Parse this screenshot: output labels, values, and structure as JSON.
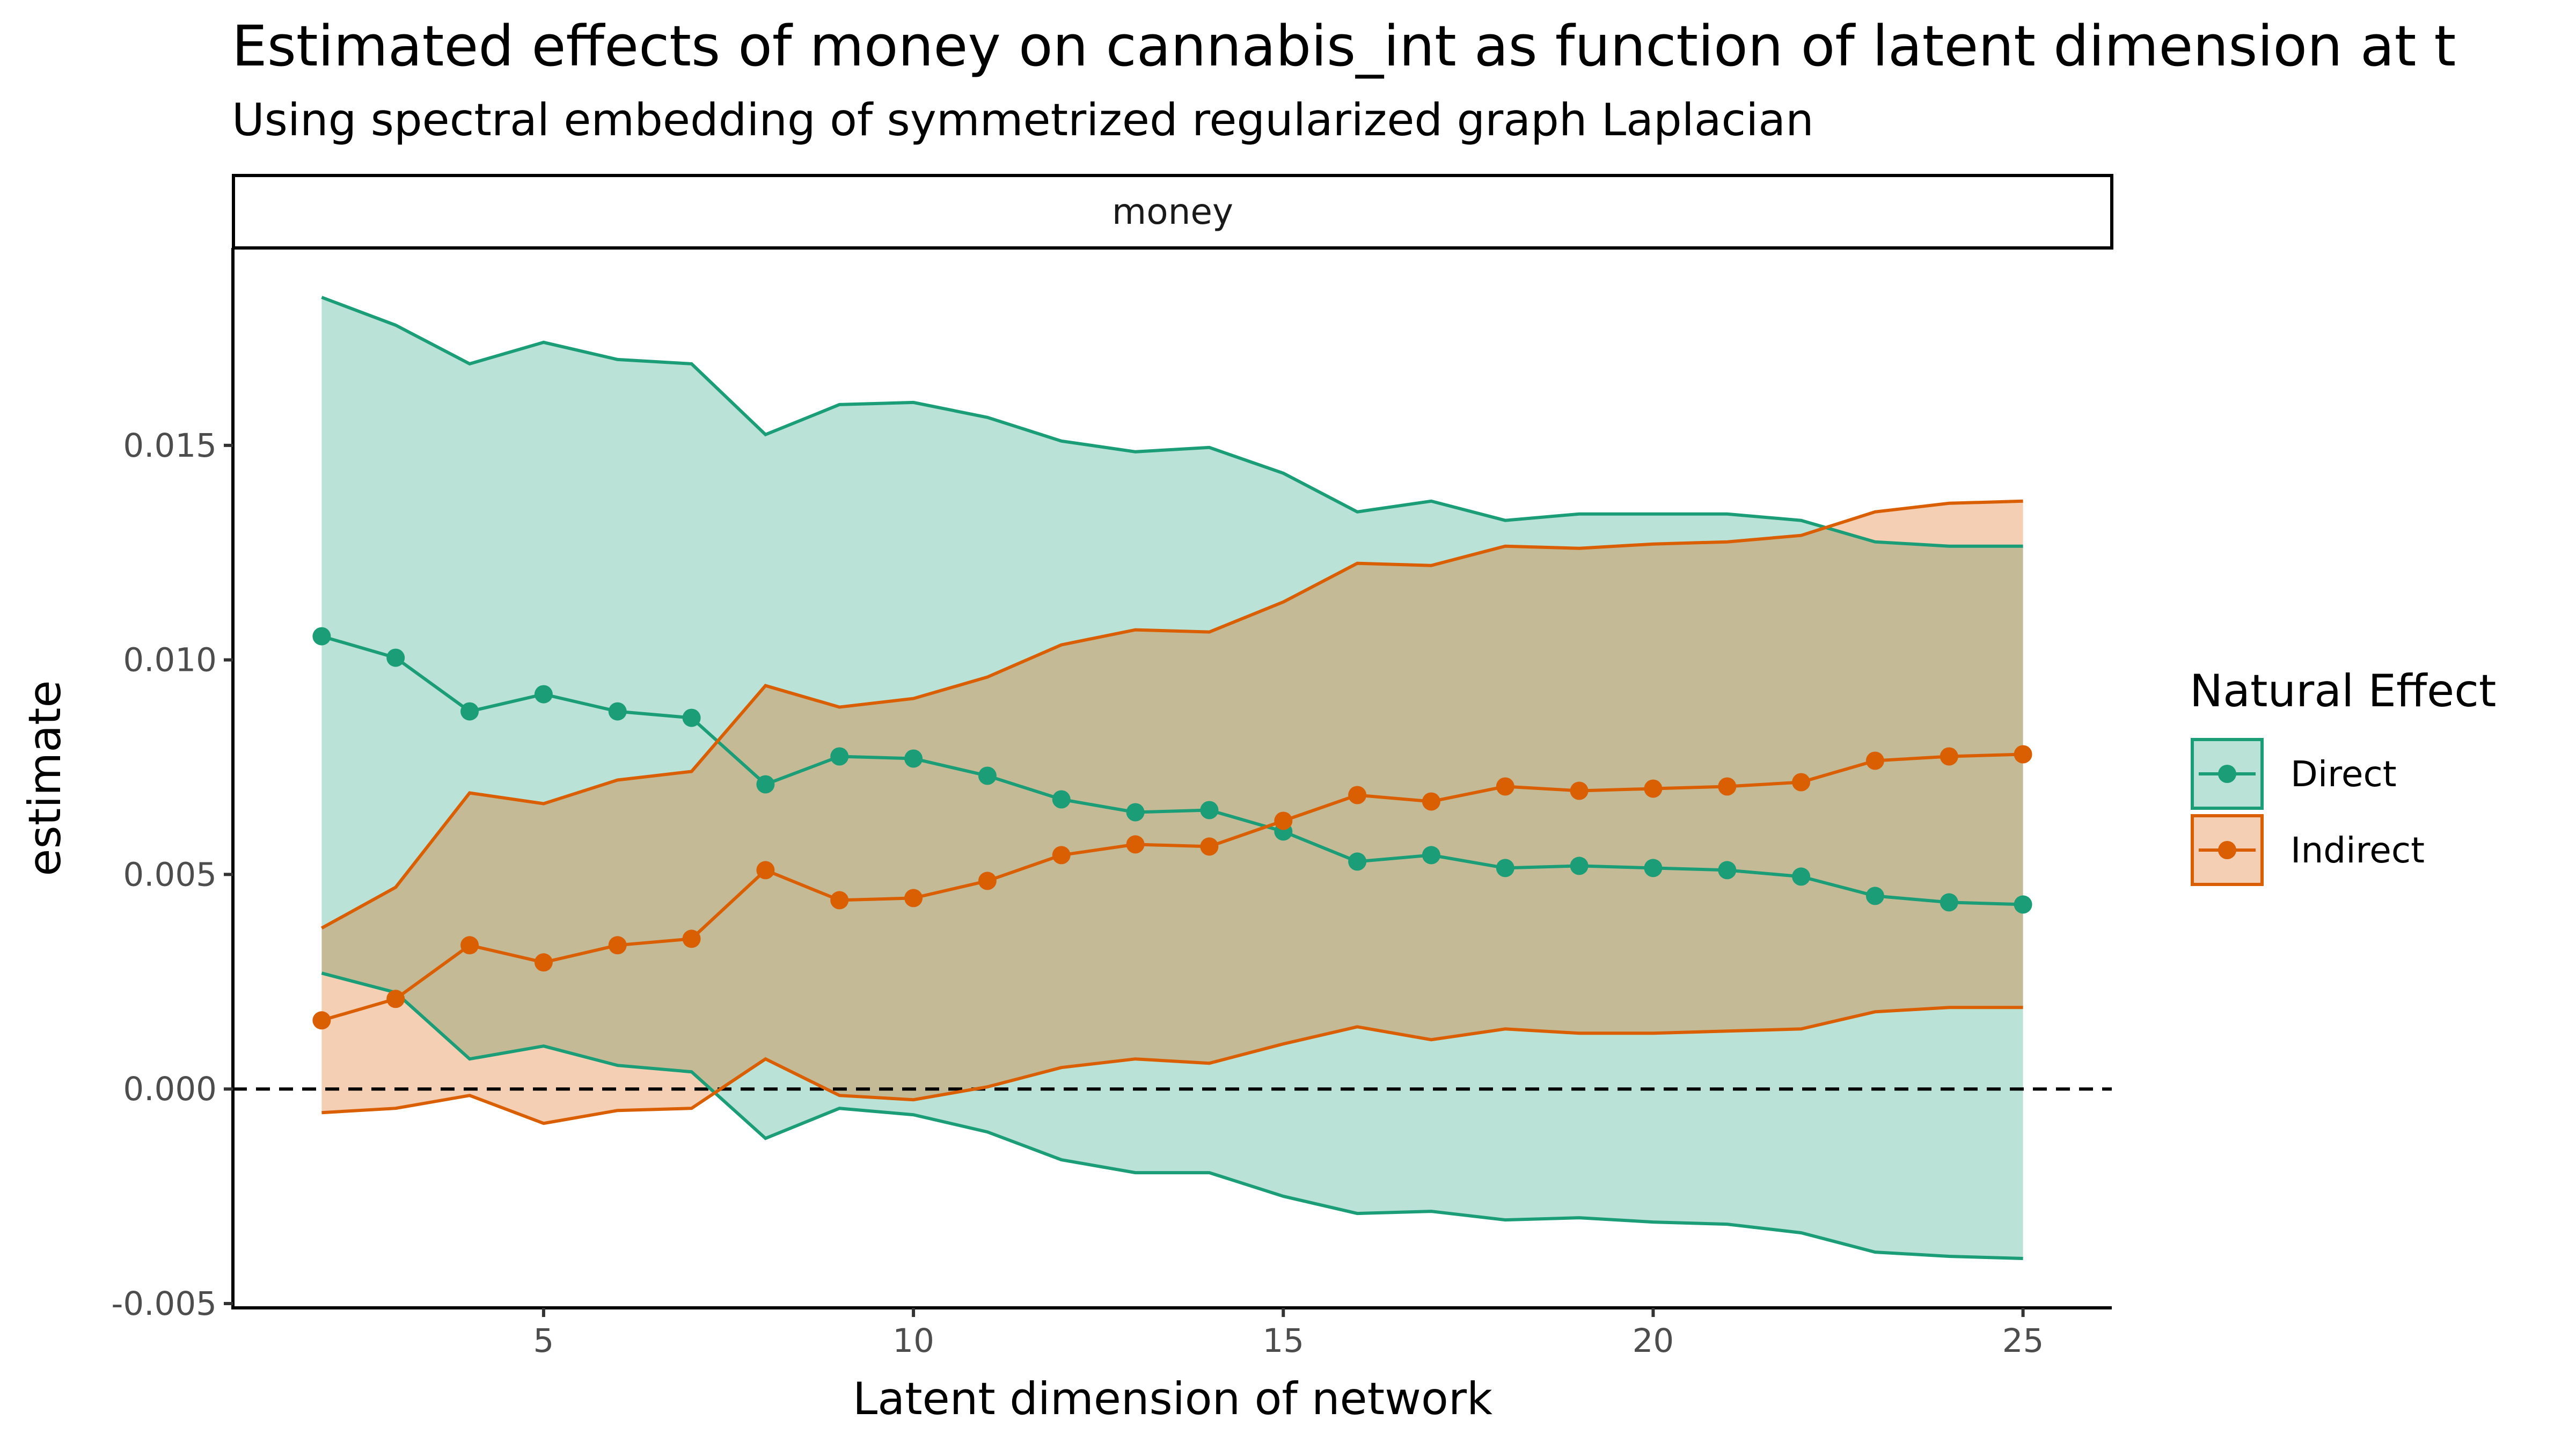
{
  "chart_data": {
    "type": "line",
    "title": "Estimated effects of money on cannabis_int as function of latent dimension at t",
    "subtitle": "Using spectral embedding of symmetrized regularized graph Laplacian",
    "facet_label": "money",
    "xlabel": "Latent dimension of network",
    "ylabel": "estimate",
    "xlim": [
      0.8,
      26.2
    ],
    "ylim": [
      -0.0051,
      0.0196
    ],
    "x_ticks": [
      5,
      10,
      15,
      20,
      25
    ],
    "x_tick_labels": [
      "5",
      "10",
      "15",
      "20",
      "25"
    ],
    "y_ticks": [
      -0.005,
      0,
      0.005,
      0.01,
      0.015
    ],
    "y_tick_labels": [
      "-0.005",
      "0.000",
      "0.005",
      "0.010",
      "0.015"
    ],
    "reference_line": {
      "y": 0,
      "style": "dashed"
    },
    "grid": false,
    "legend": {
      "title": "Natural Effect",
      "position": "right"
    },
    "x": [
      2,
      3,
      4,
      5,
      6,
      7,
      8,
      9,
      10,
      11,
      12,
      13,
      14,
      15,
      16,
      17,
      18,
      19,
      20,
      21,
      22,
      23,
      24,
      25
    ],
    "series": [
      {
        "name": "Direct",
        "color": "#1b9e77",
        "fill": "#b9e3d8",
        "values": [
          0.01055,
          0.01005,
          0.0088,
          0.0092,
          0.0088,
          0.00865,
          0.0071,
          0.00775,
          0.0077,
          0.0073,
          0.00675,
          0.00645,
          0.0065,
          0.006,
          0.0053,
          0.00545,
          0.00515,
          0.0052,
          0.00515,
          0.0051,
          0.00495,
          0.0045,
          0.00435,
          0.0043
        ],
        "lower": [
          0.0027,
          0.00225,
          0.0007,
          0.001,
          0.00055,
          0.0004,
          -0.00115,
          -0.00045,
          -0.0006,
          -0.001,
          -0.00165,
          -0.00195,
          -0.00195,
          -0.0025,
          -0.0029,
          -0.00285,
          -0.00305,
          -0.003,
          -0.0031,
          -0.00315,
          -0.00335,
          -0.0038,
          -0.0039,
          -0.00395
        ],
        "upper": [
          0.01845,
          0.0178,
          0.0169,
          0.0174,
          0.017,
          0.0169,
          0.01525,
          0.01595,
          0.016,
          0.01565,
          0.0151,
          0.01485,
          0.01495,
          0.01435,
          0.01345,
          0.0137,
          0.01325,
          0.0134,
          0.0134,
          0.0134,
          0.01325,
          0.01275,
          0.01265,
          0.01265
        ]
      },
      {
        "name": "Indirect",
        "color": "#d95f02",
        "fill": "#f5cdb3",
        "values": [
          0.0016,
          0.0021,
          0.00335,
          0.00295,
          0.00335,
          0.0035,
          0.0051,
          0.0044,
          0.00445,
          0.00485,
          0.00545,
          0.0057,
          0.00565,
          0.00625,
          0.00685,
          0.0067,
          0.00705,
          0.00695,
          0.007,
          0.00705,
          0.00715,
          0.00765,
          0.00775,
          0.0078
        ],
        "lower": [
          -0.00055,
          -0.00045,
          -0.00015,
          -0.0008,
          -0.0005,
          -0.00045,
          0.0007,
          -0.00015,
          -0.00025,
          5e-05,
          0.0005,
          0.0007,
          0.0006,
          0.00105,
          0.00145,
          0.00115,
          0.0014,
          0.0013,
          0.0013,
          0.00135,
          0.0014,
          0.0018,
          0.0019,
          0.0019
        ],
        "upper": [
          0.00375,
          0.0047,
          0.0069,
          0.00665,
          0.0072,
          0.0074,
          0.0094,
          0.0089,
          0.0091,
          0.0096,
          0.01035,
          0.0107,
          0.01065,
          0.01135,
          0.01225,
          0.0122,
          0.01265,
          0.0126,
          0.0127,
          0.01275,
          0.0129,
          0.01345,
          0.01365,
          0.0137
        ]
      }
    ]
  }
}
